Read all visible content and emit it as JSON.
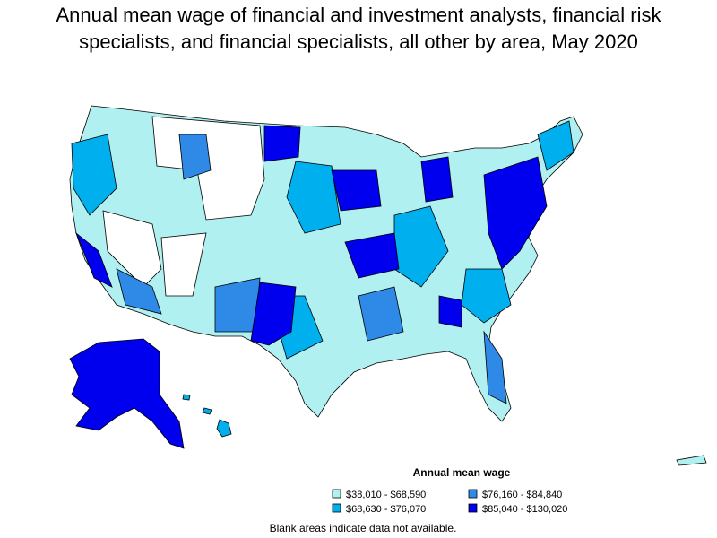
{
  "title": "Annual mean wage of financial and investment analysts, financial risk specialists, and financial specialists, all other by area, May 2020",
  "legend": {
    "title": "Annual mean wage",
    "items": [
      {
        "label": "$38,010 - $68,590",
        "color": "#b0f0f0"
      },
      {
        "label": "$68,630 - $76,070",
        "color": "#00b0ee"
      },
      {
        "label": "$76,160 - $84,840",
        "color": "#2e8ae6"
      },
      {
        "label": "$85,040 - $130,020",
        "color": "#0000ee"
      }
    ]
  },
  "note": "Blank areas indicate data not available."
}
